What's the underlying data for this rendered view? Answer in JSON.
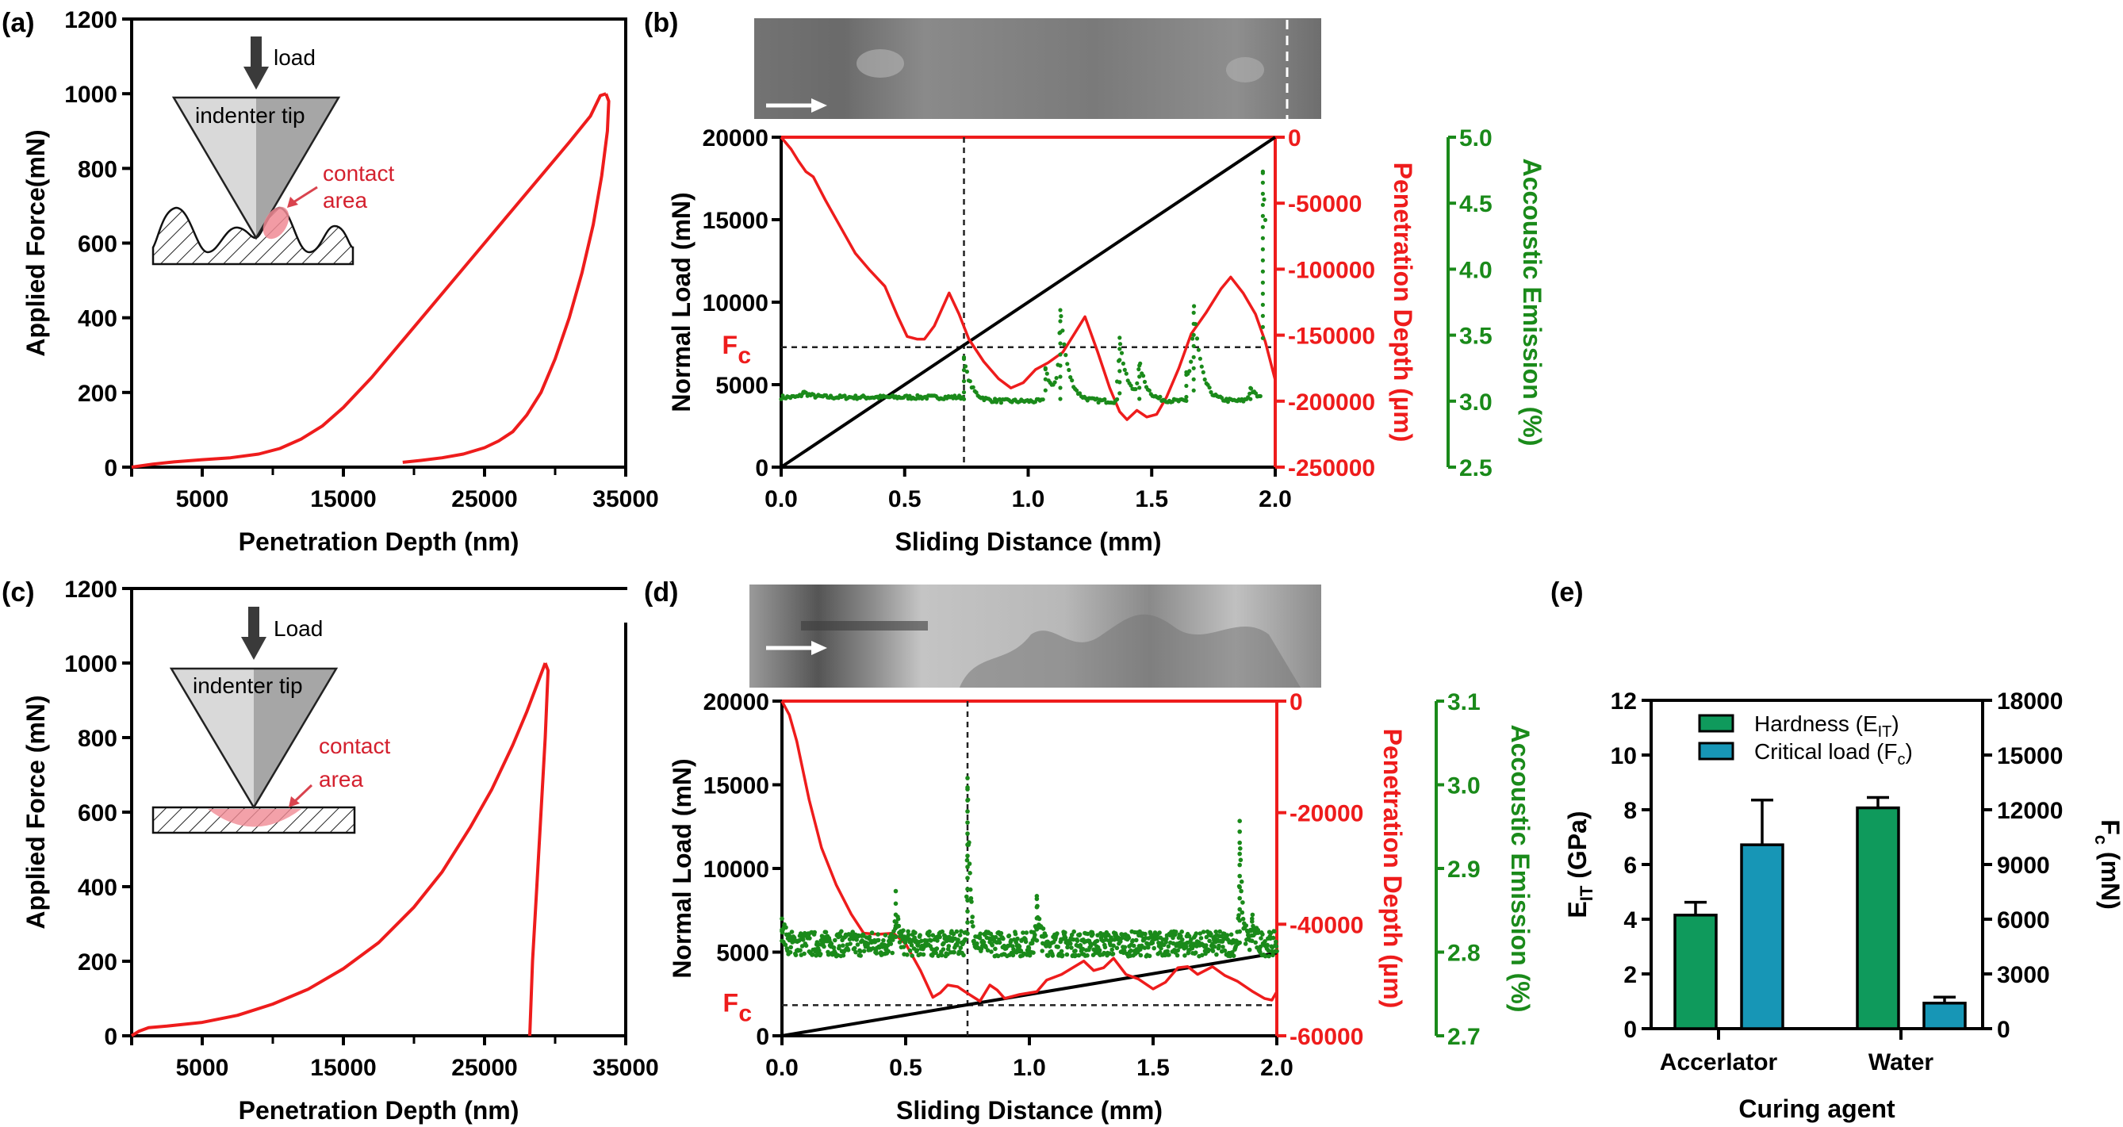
{
  "figure": {
    "panel_labels": [
      "(a)",
      "(b)",
      "(c)",
      "(d)",
      "(e)"
    ],
    "fc_label": "F",
    "fc_sub": "c",
    "insets": {
      "a": {
        "load": "load",
        "tip": "indenter tip",
        "contact1": "contact",
        "contact2": "area"
      },
      "c": {
        "load": "Load",
        "tip": "indenter tip",
        "contact1": "contact",
        "contact2": "area"
      }
    },
    "colors": {
      "red": "#ee1c1c",
      "green": "#1a8a1a",
      "black": "#000000",
      "bar_green": "#0f9a5c",
      "bar_blue": "#1796b6",
      "tip_light": "#d9d9d9",
      "tip_dark": "#a6a6a6",
      "contact": "#f08a94",
      "contact_text": "#d4202e"
    }
  },
  "chart_data": [
    {
      "id": "a",
      "type": "line",
      "title": "",
      "xlabel": "Penetration Depth (nm)",
      "ylabel": "Applied Force(mN)",
      "xlim": [
        0,
        35000
      ],
      "ylim": [
        0,
        1200
      ],
      "xticks": [
        5000,
        15000,
        25000,
        35000
      ],
      "xticks_minor": [
        10000,
        20000,
        30000
      ],
      "yticks": [
        0,
        200,
        400,
        600,
        800,
        1000,
        1200
      ],
      "grid": false,
      "series": [
        {
          "name": "loading",
          "x": [
            0,
            1500,
            3000,
            5000,
            7000,
            9000,
            10500,
            12000,
            13500,
            15000,
            17000,
            19000,
            21000,
            23000,
            25000,
            27000,
            29000,
            31000,
            32500,
            33200,
            33600
          ],
          "y": [
            0,
            8,
            14,
            20,
            25,
            35,
            50,
            75,
            110,
            160,
            240,
            330,
            420,
            510,
            600,
            690,
            780,
            870,
            940,
            995,
            1000
          ]
        },
        {
          "name": "unloading",
          "x": [
            33600,
            33800,
            33700,
            33300,
            32700,
            31900,
            31000,
            30000,
            29000,
            28000,
            27000,
            26000,
            25000,
            23500,
            22000,
            20500,
            19200
          ],
          "y": [
            1000,
            980,
            900,
            780,
            650,
            520,
            400,
            290,
            200,
            140,
            95,
            70,
            52,
            35,
            25,
            18,
            13
          ]
        }
      ]
    },
    {
      "id": "b",
      "type": "line",
      "xlabel": "Sliding Distance (mm)",
      "ylabel": "Normal Load (mN)",
      "y2label": "Penetration Depth (µm)",
      "y3label": "Accoustic Emission (%)",
      "xlim": [
        0,
        2.0
      ],
      "ylim": [
        0,
        20000
      ],
      "y2lim": [
        -250000,
        0
      ],
      "y3lim": [
        2.5,
        5.0
      ],
      "xticks": [
        "0.0",
        "0.5",
        "1.0",
        "1.5",
        "2.0"
      ],
      "yticks": [
        "0",
        "5000",
        "10000",
        "15000",
        "20000"
      ],
      "y2ticks": [
        "0",
        "-50000",
        "-100000",
        "-150000",
        "-200000",
        "-250000"
      ],
      "y3ticks": [
        "2.5",
        "3.0",
        "3.5",
        "4.0",
        "4.5",
        "5.0"
      ],
      "critical_load_mN": 7270,
      "critical_distance_mm": 0.74,
      "series": [
        {
          "name": "Normal Load",
          "axis": "left",
          "color": "black",
          "x": [
            0,
            2.0
          ],
          "y": [
            0,
            20000
          ]
        },
        {
          "name": "Penetration Depth",
          "axis": "right",
          "color": "red",
          "x": [
            0,
            0.04,
            0.07,
            0.1,
            0.13,
            0.18,
            0.24,
            0.3,
            0.36,
            0.42,
            0.47,
            0.51,
            0.55,
            0.58,
            0.62,
            0.68,
            0.72,
            0.76,
            0.82,
            0.88,
            0.93,
            0.98,
            1.03,
            1.08,
            1.14,
            1.19,
            1.23,
            1.28,
            1.33,
            1.37,
            1.4,
            1.44,
            1.48,
            1.52,
            1.56,
            1.61,
            1.66,
            1.72,
            1.78,
            1.82,
            1.87,
            1.92,
            1.96,
            2.0
          ],
          "y": [
            0,
            -9000,
            -18000,
            -26000,
            -30000,
            -48000,
            -68000,
            -88000,
            -101000,
            -113000,
            -135000,
            -151000,
            -153000,
            -153000,
            -143000,
            -118000,
            -134000,
            -153000,
            -170000,
            -183000,
            -190000,
            -186000,
            -176000,
            -171000,
            -163000,
            -148000,
            -136000,
            -162000,
            -190000,
            -208000,
            -214000,
            -207000,
            -212000,
            -210000,
            -197000,
            -175000,
            -149000,
            -133000,
            -115000,
            -106000,
            -118000,
            -134000,
            -155000,
            -184000
          ]
        },
        {
          "name": "Accoustic Emission",
          "axis": "right2",
          "color": "green",
          "style": "dots",
          "segments": [
            {
              "x0": 0.0,
              "x1": 0.74,
              "base": 3.03,
              "peaks": [
                [
                  0.09,
                  3.07
                ]
              ]
            },
            {
              "x0": 0.74,
              "x1": 1.06,
              "base": 3.0,
              "peaks": [
                [
                  0.74,
                  3.32
                ]
              ]
            },
            {
              "x0": 1.07,
              "x1": 1.36,
              "base": 3.0,
              "peaks": [
                [
                  1.07,
                  3.25
                ],
                [
                  1.13,
                  3.69
                ]
              ]
            },
            {
              "x0": 1.36,
              "x1": 1.64,
              "base": 3.0,
              "peaks": [
                [
                  1.37,
                  3.48
                ],
                [
                  1.45,
                  3.27
                ]
              ]
            },
            {
              "x0": 1.64,
              "x1": 1.94,
              "base": 3.0,
              "peaks": [
                [
                  1.64,
                  3.2
                ],
                [
                  1.67,
                  3.67
                ],
                [
                  1.9,
                  3.1
                ]
              ]
            },
            {
              "x0": 1.95,
              "x1": 1.96,
              "base": 3.4,
              "peaks": [
                [
                  1.95,
                  4.74
                ]
              ]
            }
          ]
        }
      ]
    },
    {
      "id": "c",
      "type": "line",
      "xlabel": "Penetration Depth (nm)",
      "ylabel": "Applied Force (mN)",
      "xlim": [
        0,
        35000
      ],
      "ylim": [
        0,
        1200
      ],
      "xticks": [
        5000,
        15000,
        25000,
        35000
      ],
      "xticks_minor": [
        10000,
        20000,
        30000
      ],
      "yticks": [
        0,
        200,
        400,
        600,
        800,
        1000,
        1200
      ],
      "grid": false,
      "series": [
        {
          "name": "loading",
          "x": [
            0,
            500,
            1200,
            2500,
            5000,
            7500,
            10000,
            12500,
            15000,
            17500,
            20000,
            22000,
            24000,
            25500,
            27000,
            28000,
            28800,
            29300
          ],
          "y": [
            0,
            12,
            22,
            26,
            36,
            55,
            85,
            125,
            180,
            250,
            345,
            440,
            560,
            660,
            780,
            870,
            950,
            1000
          ]
        },
        {
          "name": "unloading",
          "x": [
            29300,
            29500,
            29300,
            29000,
            28700,
            28400,
            28200
          ],
          "y": [
            1000,
            980,
            800,
            600,
            400,
            200,
            0
          ]
        }
      ]
    },
    {
      "id": "d",
      "type": "line",
      "xlabel": "Sliding Distance (mm)",
      "ylabel": "Normal Load (mN)",
      "y2label": "Penetration Depth (µm)",
      "y3label": "Accoustic Emission (%)",
      "xlim": [
        0,
        2.0
      ],
      "ylim": [
        0,
        20000
      ],
      "y2lim": [
        -60000,
        0
      ],
      "y3lim": [
        2.7,
        3.1
      ],
      "xticks": [
        "0.0",
        "0.5",
        "1.0",
        "1.5",
        "2.0"
      ],
      "yticks": [
        "0",
        "5000",
        "10000",
        "15000",
        "20000"
      ],
      "y2ticks": [
        "0",
        "-20000",
        "-40000",
        "-60000"
      ],
      "y3ticks": [
        "2.7",
        "2.8",
        "2.9",
        "3.0",
        "3.1"
      ],
      "critical_load_mN": 1830,
      "critical_distance_mm": 0.75,
      "series": [
        {
          "name": "Normal Load",
          "axis": "left",
          "color": "black",
          "x": [
            0,
            2.0
          ],
          "y": [
            0,
            4950
          ]
        },
        {
          "name": "Penetration Depth",
          "axis": "right",
          "color": "red",
          "x": [
            0,
            0.03,
            0.06,
            0.11,
            0.16,
            0.22,
            0.28,
            0.33,
            0.39,
            0.45,
            0.5,
            0.56,
            0.61,
            0.64,
            0.67,
            0.71,
            0.74,
            0.8,
            0.84,
            0.87,
            0.9,
            0.96,
            1.03,
            1.07,
            1.13,
            1.22,
            1.26,
            1.3,
            1.34,
            1.39,
            1.44,
            1.5,
            1.55,
            1.6,
            1.64,
            1.68,
            1.74,
            1.79,
            1.84,
            1.9,
            1.95,
            1.98,
            2.0
          ],
          "y": [
            0,
            -2500,
            -7200,
            -17700,
            -26300,
            -33000,
            -38200,
            -41600,
            -41800,
            -41600,
            -43500,
            -48300,
            -53100,
            -52300,
            -50900,
            -51200,
            -52100,
            -53800,
            -50900,
            -51800,
            -53300,
            -52600,
            -52100,
            -50000,
            -49000,
            -46600,
            -48300,
            -47800,
            -46100,
            -49000,
            -49800,
            -51600,
            -50400,
            -47800,
            -47600,
            -49000,
            -47600,
            -49200,
            -50200,
            -52000,
            -53300,
            -53600,
            -52100
          ]
        },
        {
          "name": "Accoustic Emission",
          "axis": "right2",
          "color": "green",
          "style": "dots",
          "segments": [
            {
              "x0": 0.0,
              "x1": 2.0,
              "base": 2.81,
              "noise": 0.015,
              "peaks": [
                [
                  0.0,
                  2.84
                ],
                [
                  0.46,
                  2.858
                ],
                [
                  0.75,
                  3.008
                ],
                [
                  1.03,
                  2.867
                ],
                [
                  1.85,
                  2.944
                ],
                [
                  1.9,
                  2.84
                ]
              ]
            }
          ]
        }
      ]
    },
    {
      "id": "e",
      "type": "bar",
      "xlabel": "Curing agent",
      "ylabel": "E_IT (GPa)",
      "ylabel_main": "E",
      "ylabel_sub": "IT",
      "ylabel_rest": " (GPa)",
      "y2label_main": "F",
      "y2label_sub": "c",
      "y2label_rest": " (mN)",
      "categories": [
        "Accerlator",
        "Water"
      ],
      "ylim": [
        0,
        12
      ],
      "y2lim": [
        0,
        18000
      ],
      "yticks": [
        "0",
        "2",
        "4",
        "6",
        "8",
        "10",
        "12"
      ],
      "y2ticks": [
        "0",
        "3000",
        "6000",
        "9000",
        "12000",
        "15000",
        "18000"
      ],
      "legend": {
        "position": "top-center",
        "items": [
          {
            "main": "Hardness (E",
            "sub": "IT",
            "end": ")"
          },
          {
            "main": "Critical load (F",
            "sub": "c",
            "end": ")"
          }
        ]
      },
      "series": [
        {
          "name": "Hardness (E_IT)",
          "axis": "left",
          "unit": "GPa",
          "values": [
            4.15,
            8.07
          ],
          "errors": [
            0.47,
            0.38
          ]
        },
        {
          "name": "Critical load (F_c)",
          "axis": "right",
          "unit": "mN",
          "values": [
            10080,
            1400
          ],
          "errors": [
            2450,
            330
          ]
        }
      ]
    }
  ]
}
